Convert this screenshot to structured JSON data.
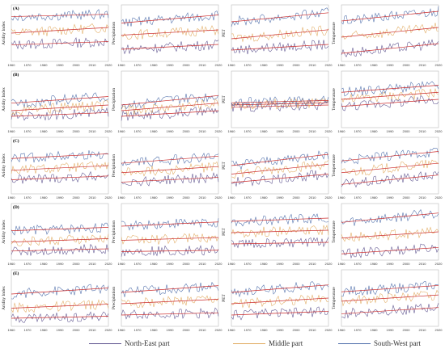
{
  "figure": {
    "row_labels": [
      "(A)",
      "(B)",
      "(C)",
      "(D)",
      "(E)"
    ],
    "column_ylabels": [
      "Aridity Index",
      "Precipitation",
      "PET",
      "Temperature"
    ],
    "x_ticks": [
      "1960",
      "1970",
      "1980",
      "1990",
      "2000",
      "2010",
      "2020"
    ]
  },
  "legend": {
    "items": [
      {
        "label": "North-East part",
        "color": "#5a4f8c"
      },
      {
        "label": "Middle part",
        "color": "#e0a85c"
      },
      {
        "label": "South-West part",
        "color": "#4a6aa8"
      }
    ]
  },
  "chart_data": [
    {
      "type": "line",
      "row": "(A)",
      "ylabel": "Aridity Index",
      "x": [
        1960,
        2020
      ],
      "ylim": [
        0,
        1.2
      ],
      "series": [
        {
          "name": "North-East part",
          "values": [
            0.35,
            0.42
          ]
        },
        {
          "name": "Middle part",
          "values": [
            0.6,
            0.72
          ]
        },
        {
          "name": "South-West part",
          "values": [
            0.95,
            1.0
          ]
        }
      ],
      "trend_color": "#cc2b2b"
    },
    {
      "type": "line",
      "row": "(A)",
      "ylabel": "Precipitation",
      "x": [
        1960,
        2020
      ],
      "ylim": [
        0,
        1400
      ],
      "series": [
        {
          "name": "North-East part",
          "values": [
            300,
            420
          ]
        },
        {
          "name": "Middle part",
          "values": [
            650,
            780
          ]
        },
        {
          "name": "South-West part",
          "values": [
            950,
            1150
          ]
        }
      ],
      "trend_color": "#cc2b2b"
    },
    {
      "type": "line",
      "row": "(A)",
      "ylabel": "PET",
      "x": [
        1960,
        2020
      ],
      "ylim": [
        900,
        1400
      ],
      "series": [
        {
          "name": "North-East part",
          "values": [
            1000,
            1050
          ]
        },
        {
          "name": "Middle part",
          "values": [
            1100,
            1180
          ]
        },
        {
          "name": "South-West part",
          "values": [
            1250,
            1330
          ]
        }
      ],
      "trend_color": "#cc2b2b"
    },
    {
      "type": "line",
      "row": "(A)",
      "ylabel": "Temperature",
      "x": [
        1960,
        2020
      ],
      "ylim": [
        10,
        17
      ],
      "series": [
        {
          "name": "North-East part",
          "values": [
            11,
            12.2
          ]
        },
        {
          "name": "Middle part",
          "values": [
            13,
            14.2
          ]
        },
        {
          "name": "South-West part",
          "values": [
            15,
            16.2
          ]
        }
      ],
      "trend_color": "#cc2b2b"
    },
    {
      "type": "line",
      "row": "(B)",
      "ylabel": "Aridity Index",
      "x": [
        1960,
        2020
      ],
      "ylim": [
        0,
        6
      ],
      "series": [
        {
          "name": "North-East part",
          "values": [
            1.2,
            1.6
          ]
        },
        {
          "name": "Middle part",
          "values": [
            1.8,
            2.4
          ]
        },
        {
          "name": "South-West part",
          "values": [
            2.6,
            3.3
          ]
        }
      ],
      "trend_color": "#cc2b2b"
    },
    {
      "type": "line",
      "row": "(B)",
      "ylabel": "Precipitation",
      "x": [
        1960,
        2020
      ],
      "ylim": [
        0,
        300
      ],
      "series": [
        {
          "name": "North-East part",
          "values": [
            60,
            90
          ]
        },
        {
          "name": "Middle part",
          "values": [
            90,
            130
          ]
        },
        {
          "name": "South-West part",
          "values": [
            120,
            170
          ]
        }
      ],
      "trend_color": "#cc2b2b"
    },
    {
      "type": "line",
      "row": "(B)",
      "ylabel": "PET",
      "x": [
        1960,
        2020
      ],
      "ylim": [
        20,
        70
      ],
      "series": [
        {
          "name": "North-East part",
          "values": [
            38,
            40
          ]
        },
        {
          "name": "Middle part",
          "values": [
            40,
            42
          ]
        },
        {
          "name": "South-West part",
          "values": [
            42,
            44
          ]
        }
      ],
      "trend_color": "#cc2b2b"
    },
    {
      "type": "line",
      "row": "(B)",
      "ylabel": "Temperature",
      "x": [
        1960,
        2020
      ],
      "ylim": [
        -14,
        2
      ],
      "series": [
        {
          "name": "North-East part",
          "values": [
            -8,
            -6
          ]
        },
        {
          "name": "Middle part",
          "values": [
            -6,
            -4
          ]
        },
        {
          "name": "South-West part",
          "values": [
            -4,
            -2
          ]
        }
      ],
      "trend_color": "#cc2b2b"
    },
    {
      "type": "line",
      "row": "(C)",
      "ylabel": "Aridity Index",
      "x": [
        1960,
        2020
      ],
      "ylim": [
        0,
        1.2
      ],
      "series": [
        {
          "name": "North-East part",
          "values": [
            0.3,
            0.38
          ]
        },
        {
          "name": "Middle part",
          "values": [
            0.5,
            0.6
          ]
        },
        {
          "name": "South-West part",
          "values": [
            0.75,
            0.85
          ]
        }
      ],
      "trend_color": "#cc2b2b"
    },
    {
      "type": "line",
      "row": "(C)",
      "ylabel": "Precipitation",
      "x": [
        1960,
        2020
      ],
      "ylim": [
        0,
        1200
      ],
      "series": [
        {
          "name": "North-East part",
          "values": [
            250,
            350
          ]
        },
        {
          "name": "Middle part",
          "values": [
            450,
            580
          ]
        },
        {
          "name": "South-West part",
          "values": [
            650,
            800
          ]
        }
      ],
      "trend_color": "#cc2b2b"
    },
    {
      "type": "line",
      "row": "(C)",
      "ylabel": "PET",
      "x": [
        1960,
        2020
      ],
      "ylim": [
        400,
        600
      ],
      "series": [
        {
          "name": "North-East part",
          "values": [
            440,
            470
          ]
        },
        {
          "name": "Middle part",
          "values": [
            470,
            505
          ]
        },
        {
          "name": "South-West part",
          "values": [
            500,
            540
          ]
        }
      ],
      "trend_color": "#cc2b2b"
    },
    {
      "type": "line",
      "row": "(C)",
      "ylabel": "Temperature",
      "x": [
        1960,
        2020
      ],
      "ylim": [
        2,
        14
      ],
      "series": [
        {
          "name": "North-East part",
          "values": [
            4,
            6
          ]
        },
        {
          "name": "Middle part",
          "values": [
            6.5,
            8.5
          ]
        },
        {
          "name": "South-West part",
          "values": [
            9,
            11
          ]
        }
      ],
      "trend_color": "#cc2b2b"
    },
    {
      "type": "line",
      "row": "(D)",
      "ylabel": "Aridity Index",
      "x": [
        1960,
        2020
      ],
      "ylim": [
        0,
        2.5
      ],
      "series": [
        {
          "name": "North-East part",
          "values": [
            0.4,
            0.5
          ]
        },
        {
          "name": "Middle part",
          "values": [
            0.8,
            0.95
          ]
        },
        {
          "name": "South-West part",
          "values": [
            1.3,
            1.45
          ]
        }
      ],
      "trend_color": "#cc2b2b"
    },
    {
      "type": "line",
      "row": "(D)",
      "ylabel": "Precipitation",
      "x": [
        1960,
        2020
      ],
      "ylim": [
        0,
        400
      ],
      "series": [
        {
          "name": "North-East part",
          "values": [
            60,
            70
          ]
        },
        {
          "name": "Middle part",
          "values": [
            140,
            160
          ]
        },
        {
          "name": "South-West part",
          "values": [
            240,
            270
          ]
        }
      ],
      "trend_color": "#cc2b2b"
    },
    {
      "type": "line",
      "row": "(D)",
      "ylabel": "PET",
      "x": [
        1960,
        2020
      ],
      "ylim": [
        0,
        350
      ],
      "series": [
        {
          "name": "North-East part",
          "values": [
            100,
            110
          ]
        },
        {
          "name": "Middle part",
          "values": [
            170,
            185
          ]
        },
        {
          "name": "South-West part",
          "values": [
            240,
            260
          ]
        }
      ],
      "trend_color": "#cc2b2b"
    },
    {
      "type": "line",
      "row": "(D)",
      "ylabel": "Temperature",
      "x": [
        1960,
        2020
      ],
      "ylim": [
        10,
        28
      ],
      "series": [
        {
          "name": "North-East part",
          "values": [
            12,
            14
          ]
        },
        {
          "name": "Middle part",
          "values": [
            17,
            19
          ]
        },
        {
          "name": "South-West part",
          "values": [
            22,
            25
          ]
        }
      ],
      "trend_color": "#cc2b2b"
    },
    {
      "type": "line",
      "row": "(E)",
      "ylabel": "Aridity Index",
      "x": [
        1960,
        2020
      ],
      "ylim": [
        0,
        1.4
      ],
      "series": [
        {
          "name": "North-East part",
          "values": [
            0.2,
            0.25
          ]
        },
        {
          "name": "Middle part",
          "values": [
            0.45,
            0.55
          ]
        },
        {
          "name": "South-West part",
          "values": [
            0.8,
            0.95
          ]
        }
      ],
      "trend_color": "#cc2b2b"
    },
    {
      "type": "line",
      "row": "(E)",
      "ylabel": "Precipitation",
      "x": [
        1960,
        2020
      ],
      "ylim": [
        0,
        250
      ],
      "series": [
        {
          "name": "North-East part",
          "values": [
            50,
            60
          ]
        },
        {
          "name": "Middle part",
          "values": [
            100,
            120
          ]
        },
        {
          "name": "South-West part",
          "values": [
            150,
            180
          ]
        }
      ],
      "trend_color": "#cc2b2b"
    },
    {
      "type": "line",
      "row": "(E)",
      "ylabel": "PET",
      "x": [
        1960,
        2020
      ],
      "ylim": [
        150,
        300
      ],
      "series": [
        {
          "name": "North-East part",
          "values": [
            180,
            190
          ]
        },
        {
          "name": "Middle part",
          "values": [
            210,
            225
          ]
        },
        {
          "name": "South-West part",
          "values": [
            240,
            260
          ]
        }
      ],
      "trend_color": "#cc2b2b"
    },
    {
      "type": "line",
      "row": "(E)",
      "ylabel": "Temperature",
      "x": [
        1960,
        2020
      ],
      "ylim": [
        -2,
        16
      ],
      "series": [
        {
          "name": "North-East part",
          "values": [
            2,
            4
          ]
        },
        {
          "name": "Middle part",
          "values": [
            6,
            8
          ]
        },
        {
          "name": "South-West part",
          "values": [
            9,
            11
          ]
        }
      ],
      "trend_color": "#cc2b2b"
    }
  ]
}
